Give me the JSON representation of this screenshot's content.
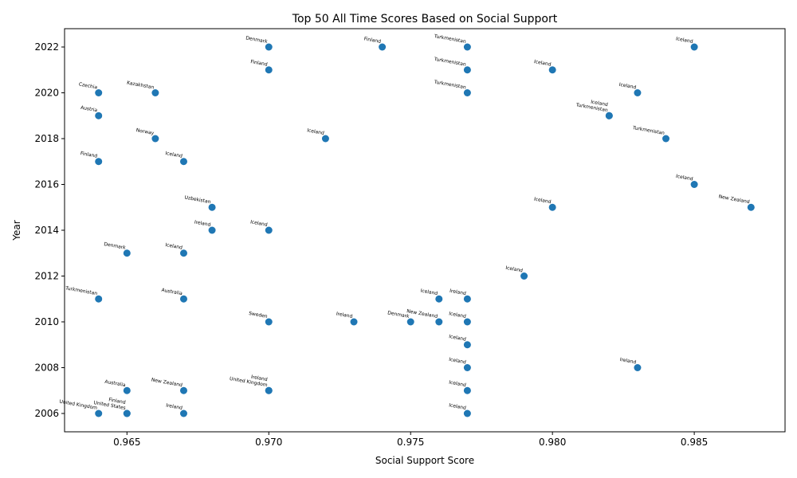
{
  "chart_data": {
    "type": "scatter",
    "title": "Top 50 All Time Scores Based on Social Support",
    "xlabel": "Social Support Score",
    "ylabel": "Year",
    "xlim": [
      0.9628,
      0.9882
    ],
    "ylim": [
      2005.2,
      2022.8
    ],
    "xticks": [
      0.965,
      0.97,
      0.975,
      0.98,
      0.985
    ],
    "xtick_labels": [
      "0.965",
      "0.970",
      "0.975",
      "0.980",
      "0.985"
    ],
    "yticks": [
      2006,
      2008,
      2010,
      2012,
      2014,
      2016,
      2018,
      2020,
      2022
    ],
    "ytick_labels": [
      "2006",
      "2008",
      "2010",
      "2012",
      "2014",
      "2016",
      "2018",
      "2020",
      "2022"
    ],
    "grid": false,
    "marker_color": "#1f77b4",
    "points": [
      {
        "x": 0.97,
        "y": 2022,
        "label": "Denmark"
      },
      {
        "x": 0.974,
        "y": 2022,
        "label": "Finland"
      },
      {
        "x": 0.977,
        "y": 2022,
        "label": "Turkmenistan"
      },
      {
        "x": 0.985,
        "y": 2022,
        "label": "Iceland"
      },
      {
        "x": 0.97,
        "y": 2021,
        "label": "Finland"
      },
      {
        "x": 0.977,
        "y": 2021,
        "label": "Turkmenistan"
      },
      {
        "x": 0.98,
        "y": 2021,
        "label": "Iceland"
      },
      {
        "x": 0.964,
        "y": 2020,
        "label": "Czechia"
      },
      {
        "x": 0.966,
        "y": 2020,
        "label": "Kazakhstan"
      },
      {
        "x": 0.977,
        "y": 2020,
        "label": "Turkmenistan"
      },
      {
        "x": 0.983,
        "y": 2020,
        "label": "Iceland"
      },
      {
        "x": 0.964,
        "y": 2019,
        "label": "Austria"
      },
      {
        "x": 0.982,
        "y": 2019,
        "label": "Turkmenistan"
      },
      {
        "x": 0.982,
        "y": 2019,
        "label": "Iceland"
      },
      {
        "x": 0.966,
        "y": 2018,
        "label": "Norway"
      },
      {
        "x": 0.972,
        "y": 2018,
        "label": "Iceland"
      },
      {
        "x": 0.984,
        "y": 2018,
        "label": "Turkmenistan"
      },
      {
        "x": 0.964,
        "y": 2017,
        "label": "Finland"
      },
      {
        "x": 0.967,
        "y": 2017,
        "label": "Iceland"
      },
      {
        "x": 0.985,
        "y": 2016,
        "label": "Iceland"
      },
      {
        "x": 0.968,
        "y": 2015,
        "label": "Uzbekistan"
      },
      {
        "x": 0.98,
        "y": 2015,
        "label": "Iceland"
      },
      {
        "x": 0.987,
        "y": 2015,
        "label": "New Zealand"
      },
      {
        "x": 0.968,
        "y": 2014,
        "label": "Ireland"
      },
      {
        "x": 0.97,
        "y": 2014,
        "label": "Iceland"
      },
      {
        "x": 0.965,
        "y": 2013,
        "label": "Denmark"
      },
      {
        "x": 0.967,
        "y": 2013,
        "label": "Iceland"
      },
      {
        "x": 0.979,
        "y": 2012,
        "label": "Iceland"
      },
      {
        "x": 0.964,
        "y": 2011,
        "label": "Turkmenistan"
      },
      {
        "x": 0.967,
        "y": 2011,
        "label": "Australia"
      },
      {
        "x": 0.976,
        "y": 2011,
        "label": "Iceland"
      },
      {
        "x": 0.977,
        "y": 2011,
        "label": "Ireland"
      },
      {
        "x": 0.97,
        "y": 2010,
        "label": "Sweden"
      },
      {
        "x": 0.973,
        "y": 2010,
        "label": "Ireland"
      },
      {
        "x": 0.975,
        "y": 2010,
        "label": "Denmark"
      },
      {
        "x": 0.976,
        "y": 2010,
        "label": "New Zealand"
      },
      {
        "x": 0.977,
        "y": 2010,
        "label": "Iceland"
      },
      {
        "x": 0.977,
        "y": 2009,
        "label": "Iceland"
      },
      {
        "x": 0.977,
        "y": 2008,
        "label": "Iceland"
      },
      {
        "x": 0.983,
        "y": 2008,
        "label": "Ireland"
      },
      {
        "x": 0.965,
        "y": 2007,
        "label": "Australia"
      },
      {
        "x": 0.967,
        "y": 2007,
        "label": "New Zealand"
      },
      {
        "x": 0.97,
        "y": 2007,
        "label": "United Kingdom"
      },
      {
        "x": 0.97,
        "y": 2007,
        "label": "Ireland"
      },
      {
        "x": 0.977,
        "y": 2007,
        "label": "Iceland"
      },
      {
        "x": 0.964,
        "y": 2006,
        "label": "United Kingdom"
      },
      {
        "x": 0.965,
        "y": 2006,
        "label": "United States"
      },
      {
        "x": 0.965,
        "y": 2006,
        "label": "Finland"
      },
      {
        "x": 0.967,
        "y": 2006,
        "label": "Ireland"
      },
      {
        "x": 0.977,
        "y": 2006,
        "label": "Iceland"
      }
    ]
  }
}
